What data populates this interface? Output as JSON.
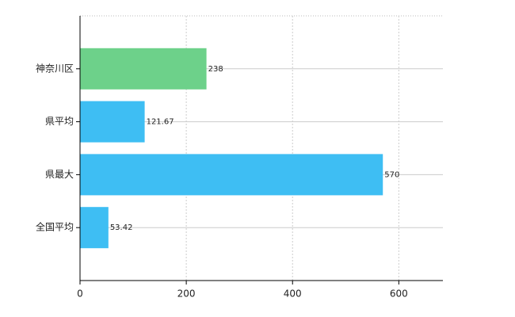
{
  "chart_data": {
    "type": "bar",
    "orientation": "horizontal",
    "categories": [
      "神奈川区",
      "県平均",
      "県最大",
      "全国平均"
    ],
    "values": [
      238,
      121.67,
      570,
      53.42
    ],
    "colors": [
      "#6dd18a",
      "#3ebef3",
      "#3ebef3",
      "#3ebef3"
    ],
    "xlim": [
      0,
      683
    ],
    "xticks": [
      0,
      200,
      400,
      600
    ],
    "grid": true
  }
}
